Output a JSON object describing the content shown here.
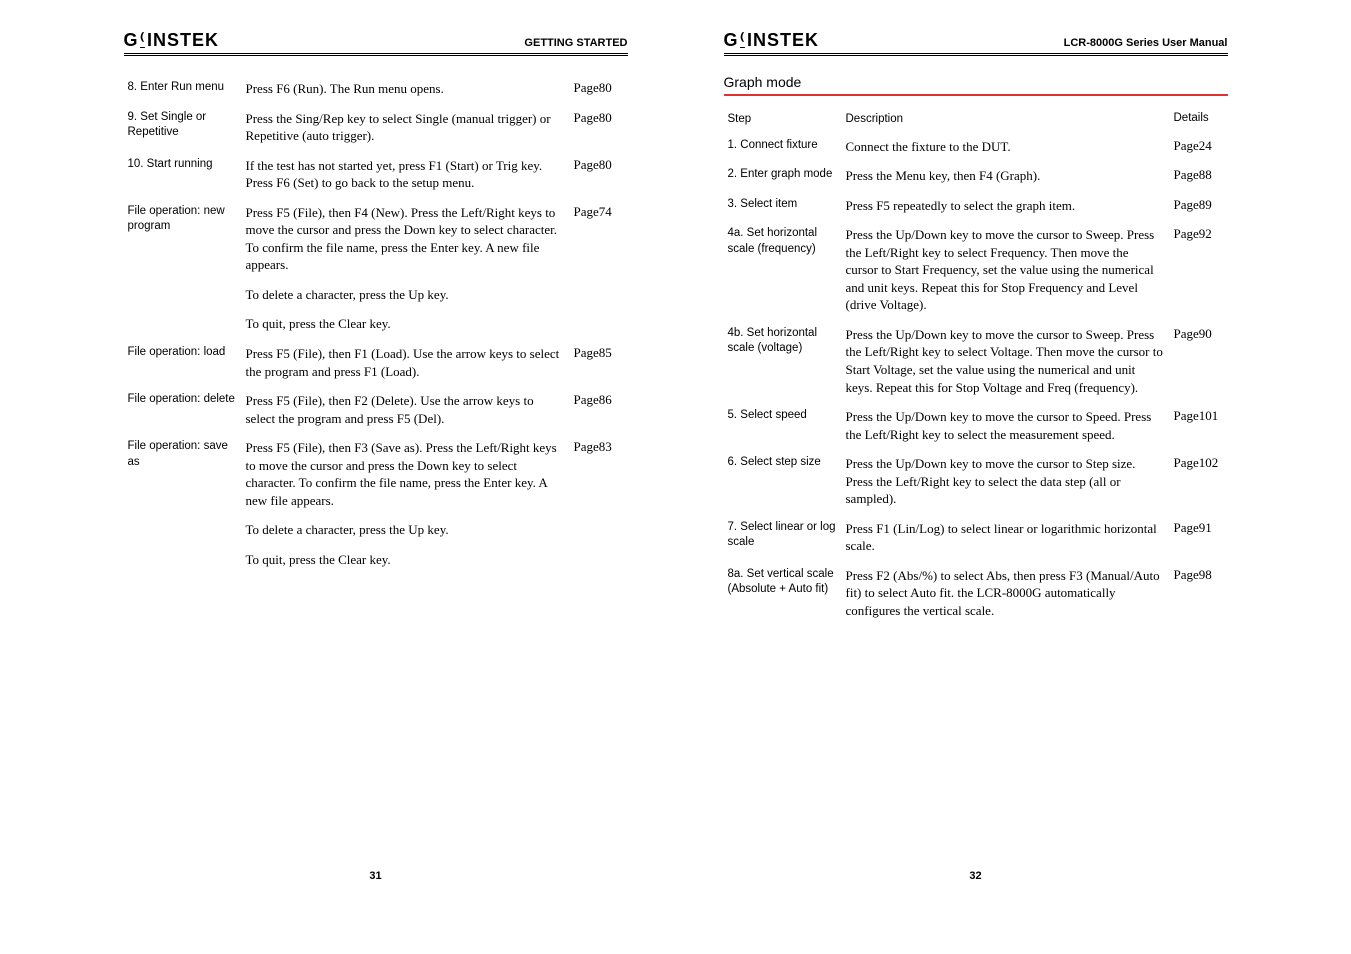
{
  "left": {
    "logo_gw": "G",
    "logo_instek": "INSTEK",
    "header_right": "GETTING STARTED",
    "footer": "31",
    "rows": [
      {
        "label": "8. Enter Run menu",
        "desc": "Press F6 (Run). The Run menu opens.",
        "page": "Page80"
      },
      {
        "label": "9. Set Single or Repetitive",
        "desc": "Press the Sing/Rep key to select Single (manual trigger) or Repetitive (auto trigger).",
        "page": "Page80"
      },
      {
        "label": "10. Start running",
        "desc": "If the test has not started yet, press F1 (Start) or Trig key. Press F6 (Set) to go back to the setup menu.",
        "page": "Page80"
      },
      {
        "label": "File operation: new program",
        "desc": "Press F5 (File), then F4 (New). Press the Left/Right keys to move the cursor and press the Down key to select character. To confirm the file name, press the Enter key. A new file appears.",
        "page": "Page74"
      },
      {
        "label": "",
        "desc": "To delete a character, press the Up key.",
        "page": ""
      },
      {
        "label": "",
        "desc": "To quit, press the Clear key.",
        "page": ""
      },
      {
        "label": "File operation: load",
        "desc": "Press F5 (File), then F1 (Load). Use the arrow keys to select the program and press F1 (Load).",
        "page": "Page85"
      },
      {
        "label": "File operation: delete",
        "desc": "Press F5 (File), then F2 (Delete). Use the arrow keys to select the program and press F5 (Del).",
        "page": "Page86"
      },
      {
        "label": "File operation: save as",
        "desc": "Press F5 (File), then F3 (Save as). Press the Left/Right keys to move the cursor and press the Down key to select character. To confirm the file name, press the Enter key. A new file appears.",
        "page": "Page83"
      },
      {
        "label": "",
        "desc": "To delete a character, press the Up key.",
        "page": ""
      },
      {
        "label": "",
        "desc": "To quit, press the Clear key.",
        "page": ""
      }
    ]
  },
  "right": {
    "logo_gw": "G",
    "logo_instek": "INSTEK",
    "header_right": "LCR-8000G Series User Manual",
    "section": "Graph mode",
    "footer": "32",
    "head": {
      "c1": "Step",
      "c2": "Description",
      "c3": "Details"
    },
    "rows": [
      {
        "label": "1. Connect fixture",
        "desc": "Connect the fixture to the DUT.",
        "page": "Page24"
      },
      {
        "label": "2. Enter graph mode",
        "desc": "Press the Menu key, then F4 (Graph).",
        "page": "Page88"
      },
      {
        "label": "3. Select item",
        "desc": "Press F5 repeatedly to select the graph item.",
        "page": "Page89"
      },
      {
        "label": "4a. Set horizontal scale (frequency)",
        "desc": "Press the Up/Down key to move the cursor to Sweep. Press the Left/Right key to select Frequency. Then move the cursor to Start Frequency, set the value using the numerical and unit keys. Repeat this for Stop Frequency and Level (drive Voltage).",
        "page": "Page92"
      },
      {
        "label": "4b. Set horizontal scale (voltage)",
        "desc": "Press the Up/Down key to move the cursor to Sweep. Press the Left/Right key to select Voltage. Then move the cursor to Start Voltage, set the value using the numerical and unit keys. Repeat this for Stop Voltage and Freq (frequency).",
        "page": "Page90"
      },
      {
        "label": "5. Select speed",
        "desc": "Press the Up/Down key to move the cursor to Speed. Press the Left/Right key to select the measurement speed.",
        "page": "Page101"
      },
      {
        "label": "6. Select step size",
        "desc": "Press the Up/Down key to move the cursor to Step size. Press the Left/Right key to select the data step (all or sampled).",
        "page": "Page102"
      },
      {
        "label": "7. Select linear or log scale",
        "desc": "Press F1 (Lin/Log) to select linear or logarithmic horizontal scale.",
        "page": "Page91"
      },
      {
        "label": "8a. Set vertical scale (Absolute + Auto fit)",
        "desc": "Press F2 (Abs/%) to select Abs, then press F3 (Manual/Auto fit) to select Auto fit. the LCR-8000G automatically configures the vertical scale.",
        "page": "Page98"
      }
    ]
  }
}
